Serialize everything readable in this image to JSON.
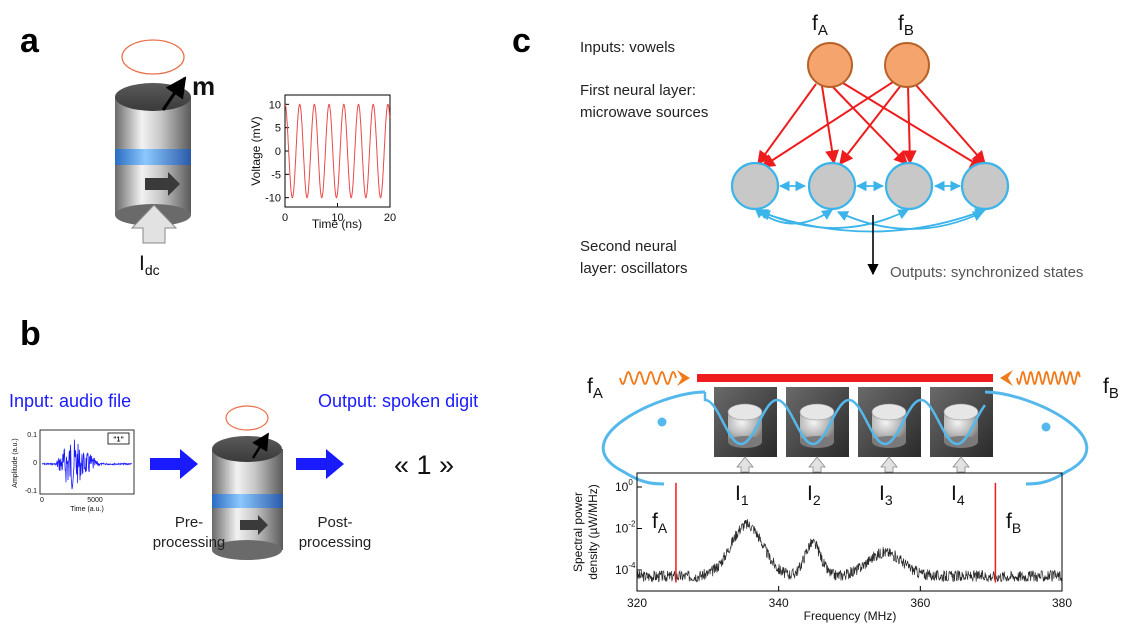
{
  "panels": {
    "a": {
      "letter": "a",
      "moment_label": "m",
      "current_label": "I",
      "current_sub": "dc",
      "chart_data": {
        "type": "line",
        "xlabel": "Time (ns)",
        "ylabel": "Voltage (mV)",
        "xlim": [
          0,
          20
        ],
        "ylim": [
          -12,
          12
        ],
        "x_ticks": [
          "0",
          "10",
          "20"
        ],
        "y_ticks": [
          "10",
          "5",
          "0",
          "-5",
          "-10"
        ],
        "series": [
          {
            "amplitude_mV": 10,
            "period_ns": 2.8,
            "color": "#e84a4a"
          }
        ]
      }
    },
    "b": {
      "letter": "b",
      "input_label": "Input: audio file",
      "output_label": "Output: spoken digit",
      "pre_label_1": "Pre-",
      "pre_label_2": "processing",
      "post_label_1": "Post-",
      "post_label_2": "processing",
      "result": "« 1 »",
      "audio_plot": {
        "xlabel": "Time (a.u.)",
        "ylabel": "Amplitude (a.u.)",
        "x_ticks": [
          "0",
          "5000"
        ],
        "y_ticks": [
          "0.1",
          "0",
          "-0.1"
        ],
        "tag": "\"1\""
      }
    },
    "c": {
      "letter": "c",
      "inputs_label": "Inputs: vowels",
      "layer1_line1": "First neural layer:",
      "layer1_line2": "microwave sources",
      "layer2_line1": "Second neural",
      "layer2_line2": "layer: oscillators",
      "outputs_label": "Outputs: synchronized states",
      "source_a": {
        "main": "f",
        "sub": "A"
      },
      "source_b": {
        "main": "f",
        "sub": "B"
      }
    },
    "d": {
      "source_a": {
        "main": "f",
        "sub": "A"
      },
      "source_b": {
        "main": "f",
        "sub": "B"
      },
      "currents": [
        {
          "main": "I",
          "sub": "1"
        },
        {
          "main": "I",
          "sub": "2"
        },
        {
          "main": "I",
          "sub": "3"
        },
        {
          "main": "I",
          "sub": "4"
        }
      ],
      "chart_data": {
        "type": "line",
        "xlabel": "Frequency (MHz)",
        "ylabel_line1": "Spectral power",
        "ylabel_line2": "density (µW/MHz)",
        "xlim": [
          320,
          380
        ],
        "y_log": true,
        "x_ticks": [
          "320",
          "340",
          "360",
          "380"
        ],
        "y_ticks": [
          {
            "base": "10",
            "exp": "0"
          },
          {
            "base": "10",
            "exp": "-2"
          },
          {
            "base": "10",
            "exp": "-4"
          }
        ],
        "peaks_MHz": [
          335.5,
          344.8,
          355
        ],
        "drive_lines_MHz": [
          325.5,
          370.6
        ]
      }
    }
  },
  "colors": {
    "red": "#ee1c1c",
    "blue": "#1a1aff",
    "cyan": "#3bb4ea",
    "orange_node": "#f4a46c",
    "gray_node": "#c8c8c8"
  }
}
